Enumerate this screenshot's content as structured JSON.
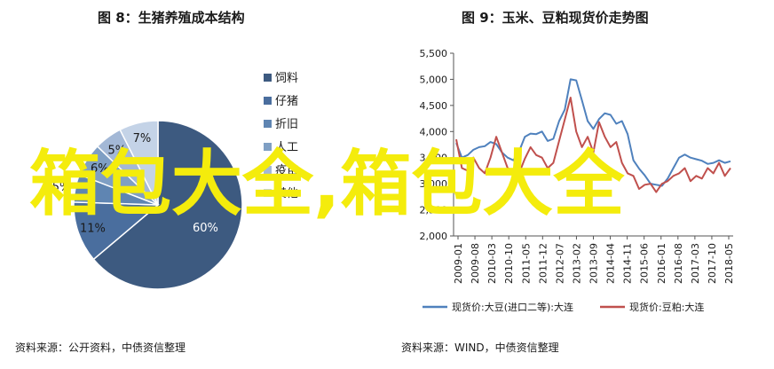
{
  "left": {
    "title": "图 8：生猪养殖成本结构",
    "source": "资料来源：公开资料，中债资信整理"
  },
  "right": {
    "title": "图 9：玉米、豆粕现货价走势图",
    "source": "资料来源：WIND，中债资信整理"
  },
  "watermark": "箱包大全,箱包大全",
  "chart_data": [
    {
      "type": "pie",
      "title": "图 8：生猪养殖成本结构",
      "legend_position": "right",
      "slices": [
        {
          "name": "饲料",
          "value": 60,
          "label": "60%",
          "color": "#3d5a80"
        },
        {
          "name": "仔猪",
          "value": 11,
          "label": "11%",
          "color": "#4a6e9e"
        },
        {
          "name": "折旧",
          "value": 5,
          "label": "5%",
          "color": "#5f85b2"
        },
        {
          "name": "人工",
          "value": 6,
          "label": "6%",
          "color": "#7f9fc4"
        },
        {
          "name": "疫苗",
          "value": 5,
          "label": "5%",
          "color": "#a3b8d6"
        },
        {
          "name": "其他",
          "value": 7,
          "label": "7%",
          "color": "#c4d3e7"
        }
      ]
    },
    {
      "type": "line",
      "title": "图 9：玉米、豆粕现货价走势图",
      "ylim": [
        2000,
        5500
      ],
      "yticks": [
        "2,000",
        "2,500",
        "3,000",
        "3,500",
        "4,000",
        "4,500",
        "5,000",
        "5,500"
      ],
      "xticks": [
        "2009-01",
        "2009-08",
        "2010-03",
        "2010-10",
        "2011-05",
        "2011-12",
        "2012-07",
        "2013-02",
        "2013-09",
        "2014-04",
        "2014-11",
        "2015-06",
        "2016-01",
        "2016-08",
        "2017-03",
        "2017-10",
        "2018-05"
      ],
      "legend_position": "bottom",
      "series": [
        {
          "name": "现货价:大豆(进口二等):大连",
          "color": "#4f81bd",
          "values": [
            3780,
            3500,
            3550,
            3650,
            3700,
            3720,
            3800,
            3760,
            3600,
            3500,
            3450,
            3620,
            3900,
            3960,
            3950,
            4000,
            3820,
            3860,
            4200,
            4420,
            5000,
            4980,
            4600,
            4200,
            4050,
            4240,
            4350,
            4320,
            4150,
            4200,
            3950,
            3450,
            3290,
            3160,
            3000,
            2980,
            2960,
            3100,
            3300,
            3500,
            3560,
            3500,
            3470,
            3440,
            3380,
            3400,
            3450,
            3400,
            3430
          ]
        },
        {
          "name": "现货价:豆粕:大连",
          "color": "#c0504d",
          "values": [
            3850,
            3300,
            3250,
            3500,
            3300,
            3200,
            3500,
            3900,
            3600,
            3300,
            3250,
            3200,
            3480,
            3700,
            3550,
            3500,
            3300,
            3400,
            3820,
            4230,
            4650,
            4000,
            3700,
            3900,
            3600,
            4180,
            3900,
            3700,
            3800,
            3400,
            3200,
            3150,
            2900,
            2980,
            3000,
            2840,
            3000,
            3050,
            3150,
            3200,
            3300,
            3050,
            3150,
            3100,
            3300,
            3200,
            3400,
            3150,
            3300
          ]
        }
      ]
    }
  ]
}
